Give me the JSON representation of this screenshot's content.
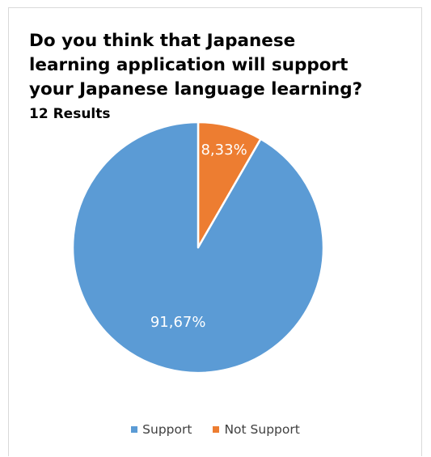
{
  "chart_data": {
    "type": "pie",
    "title_lines": [
      "Do you think that Japanese",
      "learning application will support",
      "your Japanese language learning?"
    ],
    "subtitle": "12 Results",
    "start_angle_deg": 0,
    "direction": "clockwise",
    "slices": [
      {
        "name": "Not Support",
        "value": 8.33,
        "label": "8,33%",
        "color": "#ed7d31"
      },
      {
        "name": "Support",
        "value": 91.67,
        "label": "91,67%",
        "color": "#5b9bd5"
      }
    ],
    "legend": {
      "position": "bottom",
      "items": [
        {
          "label": "Support",
          "color": "#5b9bd5"
        },
        {
          "label": "Not Support",
          "color": "#ed7d31"
        }
      ]
    }
  }
}
